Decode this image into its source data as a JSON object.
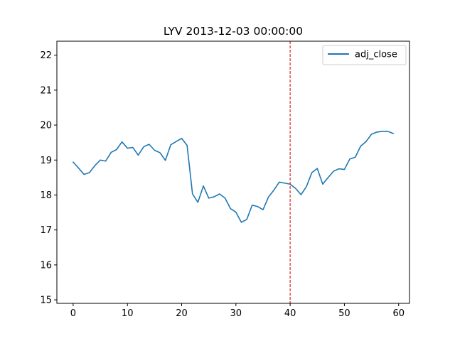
{
  "chart_data": {
    "type": "line",
    "title": "LYV 2013-12-03 00:00:00",
    "xlabel": "",
    "ylabel": "",
    "xlim": [
      -3,
      62
    ],
    "ylim": [
      14.9,
      22.4
    ],
    "xticks": [
      0,
      10,
      20,
      30,
      40,
      50,
      60
    ],
    "yticks": [
      15,
      16,
      17,
      18,
      19,
      20,
      21,
      22
    ],
    "grid": false,
    "legend": "top-right",
    "series": [
      {
        "name": "adj_close",
        "color": "#1f77b4",
        "x": [
          0,
          1,
          2,
          3,
          4,
          5,
          6,
          7,
          8,
          9,
          10,
          11,
          12,
          13,
          14,
          15,
          16,
          17,
          18,
          19,
          20,
          21,
          22,
          23,
          24,
          25,
          26,
          27,
          28,
          29,
          30,
          31,
          32,
          33,
          34,
          35,
          36,
          37,
          38,
          39,
          40,
          41,
          42,
          43,
          44,
          45,
          46,
          47,
          48,
          49,
          50,
          51,
          52,
          53,
          54,
          55,
          56,
          57,
          58,
          59
        ],
        "values": [
          18.94,
          18.77,
          18.59,
          18.64,
          18.84,
          19.0,
          18.97,
          19.22,
          19.3,
          19.52,
          19.34,
          19.36,
          19.14,
          19.38,
          19.45,
          19.28,
          19.21,
          18.99,
          19.44,
          19.53,
          19.62,
          19.42,
          18.03,
          17.79,
          18.26,
          17.91,
          17.95,
          18.03,
          17.91,
          17.61,
          17.51,
          17.22,
          17.3,
          17.71,
          17.67,
          17.58,
          17.94,
          18.14,
          18.37,
          18.34,
          18.31,
          18.19,
          18.01,
          18.24,
          18.64,
          18.76,
          18.31,
          18.5,
          18.68,
          18.75,
          18.73,
          19.03,
          19.08,
          19.4,
          19.53,
          19.74,
          19.8,
          19.82,
          19.82,
          19.76
        ]
      }
    ],
    "annotations": [
      {
        "type": "vline",
        "x": 40,
        "color": "#d62728",
        "style": "dashed"
      }
    ]
  }
}
